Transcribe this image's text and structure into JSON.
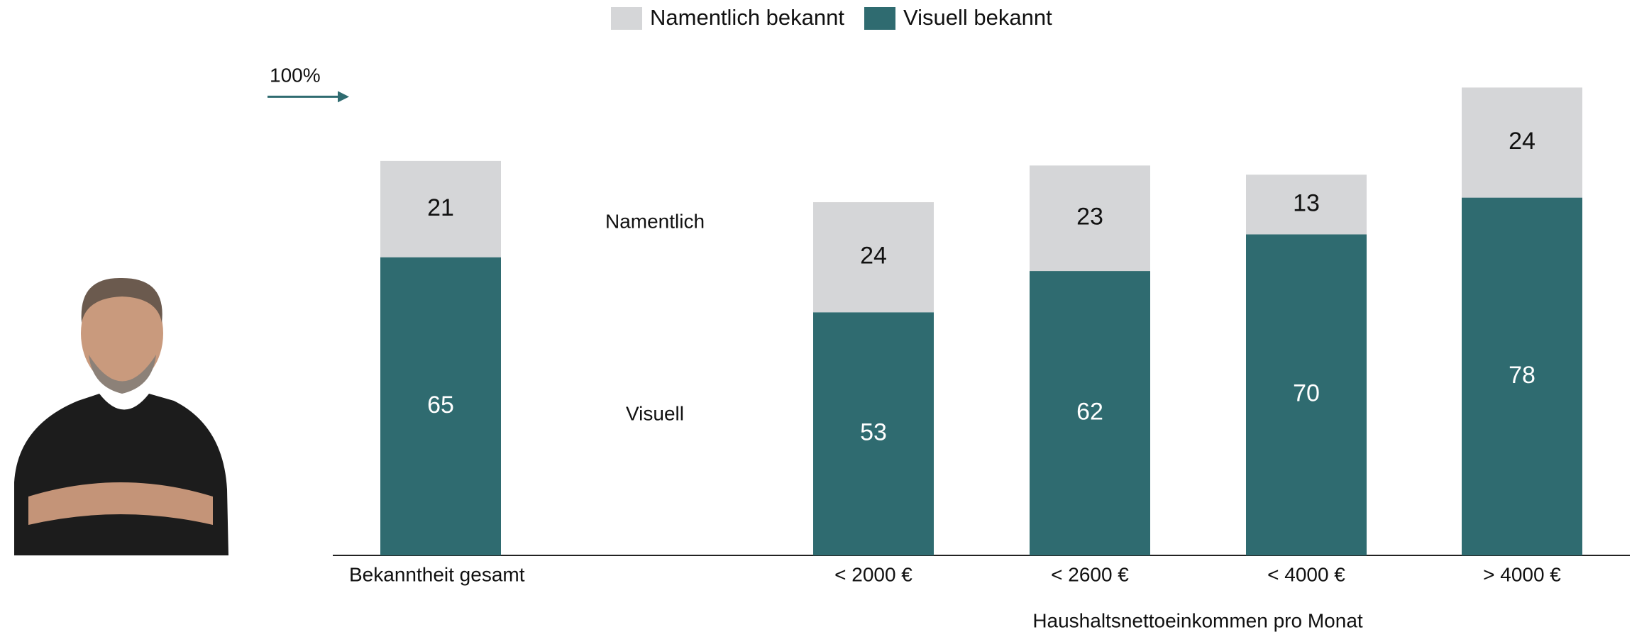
{
  "chart_data": {
    "type": "stacked-bar",
    "categories": [
      "Bekanntheit gesamt",
      "< 2000 €",
      "< 2600 €",
      "< 4000 €",
      "> 4000 €"
    ],
    "series": [
      {
        "name": "Visuell bekannt",
        "color": "#2f6b70",
        "values": [
          65,
          53,
          62,
          70,
          78
        ]
      },
      {
        "name": "Namentlich bekannt",
        "color": "#d5d6d8",
        "values": [
          21,
          24,
          23,
          13,
          24
        ]
      }
    ],
    "ylim": [
      0,
      105
    ],
    "yticks": [
      {
        "value": 100,
        "label": "100%"
      }
    ],
    "x_axis_label": "Haushaltsnettoeinkommen pro Monat",
    "annotations": [
      "Namentlich",
      "Visuell"
    ]
  }
}
